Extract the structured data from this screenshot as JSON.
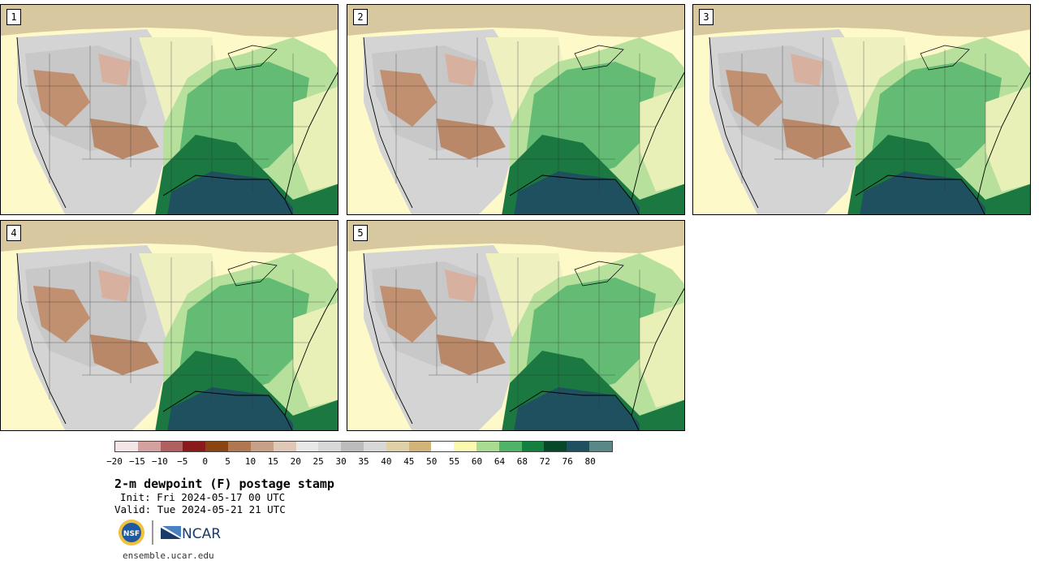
{
  "panels": [
    {
      "label": "1"
    },
    {
      "label": "2"
    },
    {
      "label": "3"
    },
    {
      "label": "4"
    },
    {
      "label": "5"
    }
  ],
  "colorbar": {
    "colors": [
      "#f4e6e6",
      "#d5a0a0",
      "#b06060",
      "#8b1a1a",
      "#8b4513",
      "#b07850",
      "#c8a088",
      "#e0c8b8",
      "#e8e8e8",
      "#d8d8d8",
      "#bcbcbc",
      "#d8d8d8",
      "#e0d0a8",
      "#d2b478",
      "#ffffff",
      "#fafab0",
      "#a8dc90",
      "#50b468",
      "#148040",
      "#064828",
      "#1e5060",
      "#5a8888"
    ],
    "ticks": [
      "−20",
      "−15",
      "−10",
      "−5",
      "0",
      "5",
      "10",
      "15",
      "20",
      "25",
      "30",
      "35",
      "40",
      "45",
      "50",
      "55",
      "60",
      "64",
      "68",
      "72",
      "76",
      "80"
    ]
  },
  "title": "2-m dewpoint (F) postage stamp",
  "init": "Init: Fri 2024-05-17 00 UTC",
  "valid": "Valid: Tue 2024-05-21 21 UTC",
  "logos": {
    "nsf": "NSF",
    "ncar": "NCAR"
  },
  "url": "ensemble.ucar.edu"
}
